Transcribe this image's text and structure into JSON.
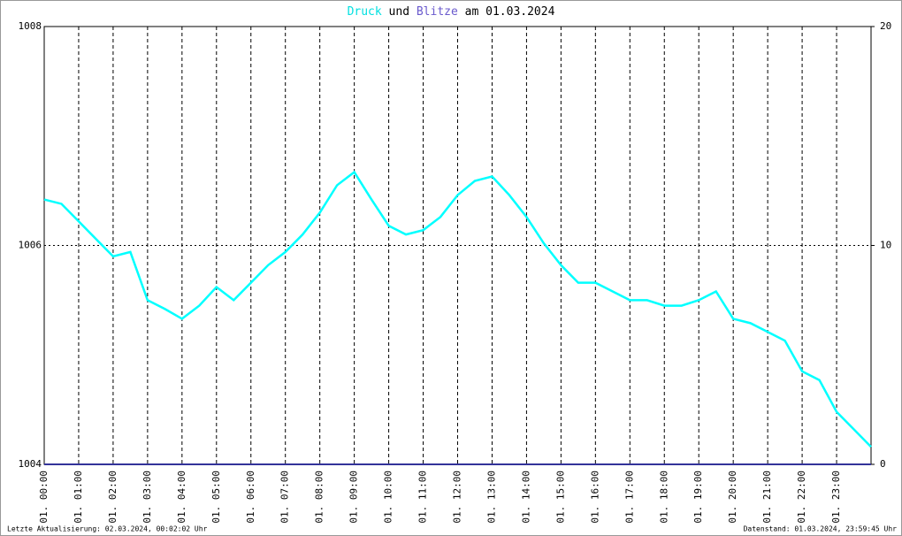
{
  "chart_data": {
    "type": "line",
    "title_parts": [
      "und",
      "am 01.03.2024"
    ],
    "footer_left": "Letzte Aktualisierung: 02.03.2024, 00:02:02 Uhr",
    "footer_right": "Datenstand: 01.03.2024, 23:59:45 Uhr",
    "xlim": [
      0,
      24
    ],
    "xticks": [
      {
        "value": 0,
        "label": "01. 00:00"
      },
      {
        "value": 1,
        "label": "01. 01:00"
      },
      {
        "value": 2,
        "label": "01. 02:00"
      },
      {
        "value": 3,
        "label": "01. 03:00"
      },
      {
        "value": 4,
        "label": "01. 04:00"
      },
      {
        "value": 5,
        "label": "01. 05:00"
      },
      {
        "value": 6,
        "label": "01. 06:00"
      },
      {
        "value": 7,
        "label": "01. 07:00"
      },
      {
        "value": 8,
        "label": "01. 08:00"
      },
      {
        "value": 9,
        "label": "01. 09:00"
      },
      {
        "value": 10,
        "label": "01. 10:00"
      },
      {
        "value": 11,
        "label": "01. 11:00"
      },
      {
        "value": 12,
        "label": "01. 12:00"
      },
      {
        "value": 13,
        "label": "01. 13:00"
      },
      {
        "value": 14,
        "label": "01. 14:00"
      },
      {
        "value": 15,
        "label": "01. 15:00"
      },
      {
        "value": 16,
        "label": "01. 16:00"
      },
      {
        "value": 17,
        "label": "01. 17:00"
      },
      {
        "value": 18,
        "label": "01. 18:00"
      },
      {
        "value": 19,
        "label": "01. 19:00"
      },
      {
        "value": 20,
        "label": "01. 20:00"
      },
      {
        "value": 21,
        "label": "01. 21:00"
      },
      {
        "value": 22,
        "label": "01. 22:00"
      },
      {
        "value": 23,
        "label": "01. 23:00"
      }
    ],
    "ylim": [
      1004,
      1008
    ],
    "yticks": [
      1004,
      1006,
      1008
    ],
    "y2lim": [
      0,
      20
    ],
    "y2ticks": [
      0,
      10,
      20
    ],
    "grid": true,
    "series": [
      {
        "name": "Druck",
        "color": "#00ffff",
        "x": [
          0,
          0.5,
          1,
          1.5,
          2,
          2.5,
          3,
          3.5,
          4,
          4.5,
          5,
          5.5,
          6,
          6.5,
          7,
          7.5,
          8,
          8.5,
          9,
          9.5,
          10,
          10.5,
          11,
          11.5,
          12,
          12.5,
          13,
          13.5,
          14,
          14.5,
          15,
          15.5,
          16,
          16.5,
          17,
          17.5,
          18,
          18.5,
          19,
          19.5,
          20,
          20.5,
          21,
          21.5,
          22,
          22.5,
          23,
          23.5,
          24
        ],
        "values": [
          1006.42,
          1006.38,
          1006.22,
          1006.06,
          1005.9,
          1005.94,
          1005.5,
          1005.42,
          1005.33,
          1005.45,
          1005.62,
          1005.5,
          1005.66,
          1005.82,
          1005.94,
          1006.1,
          1006.3,
          1006.55,
          1006.67,
          1006.42,
          1006.18,
          1006.1,
          1006.14,
          1006.26,
          1006.46,
          1006.59,
          1006.63,
          1006.46,
          1006.26,
          1006.02,
          1005.82,
          1005.66,
          1005.66,
          1005.58,
          1005.5,
          1005.5,
          1005.45,
          1005.45,
          1005.5,
          1005.58,
          1005.33,
          1005.29,
          1005.21,
          1005.13,
          1004.85,
          1004.77,
          1004.48,
          1004.32,
          1004.16
        ]
      },
      {
        "name": "Blitze",
        "color": "#333399",
        "axis": "y2",
        "x": [
          0,
          24
        ],
        "values": [
          0,
          0
        ]
      }
    ]
  }
}
